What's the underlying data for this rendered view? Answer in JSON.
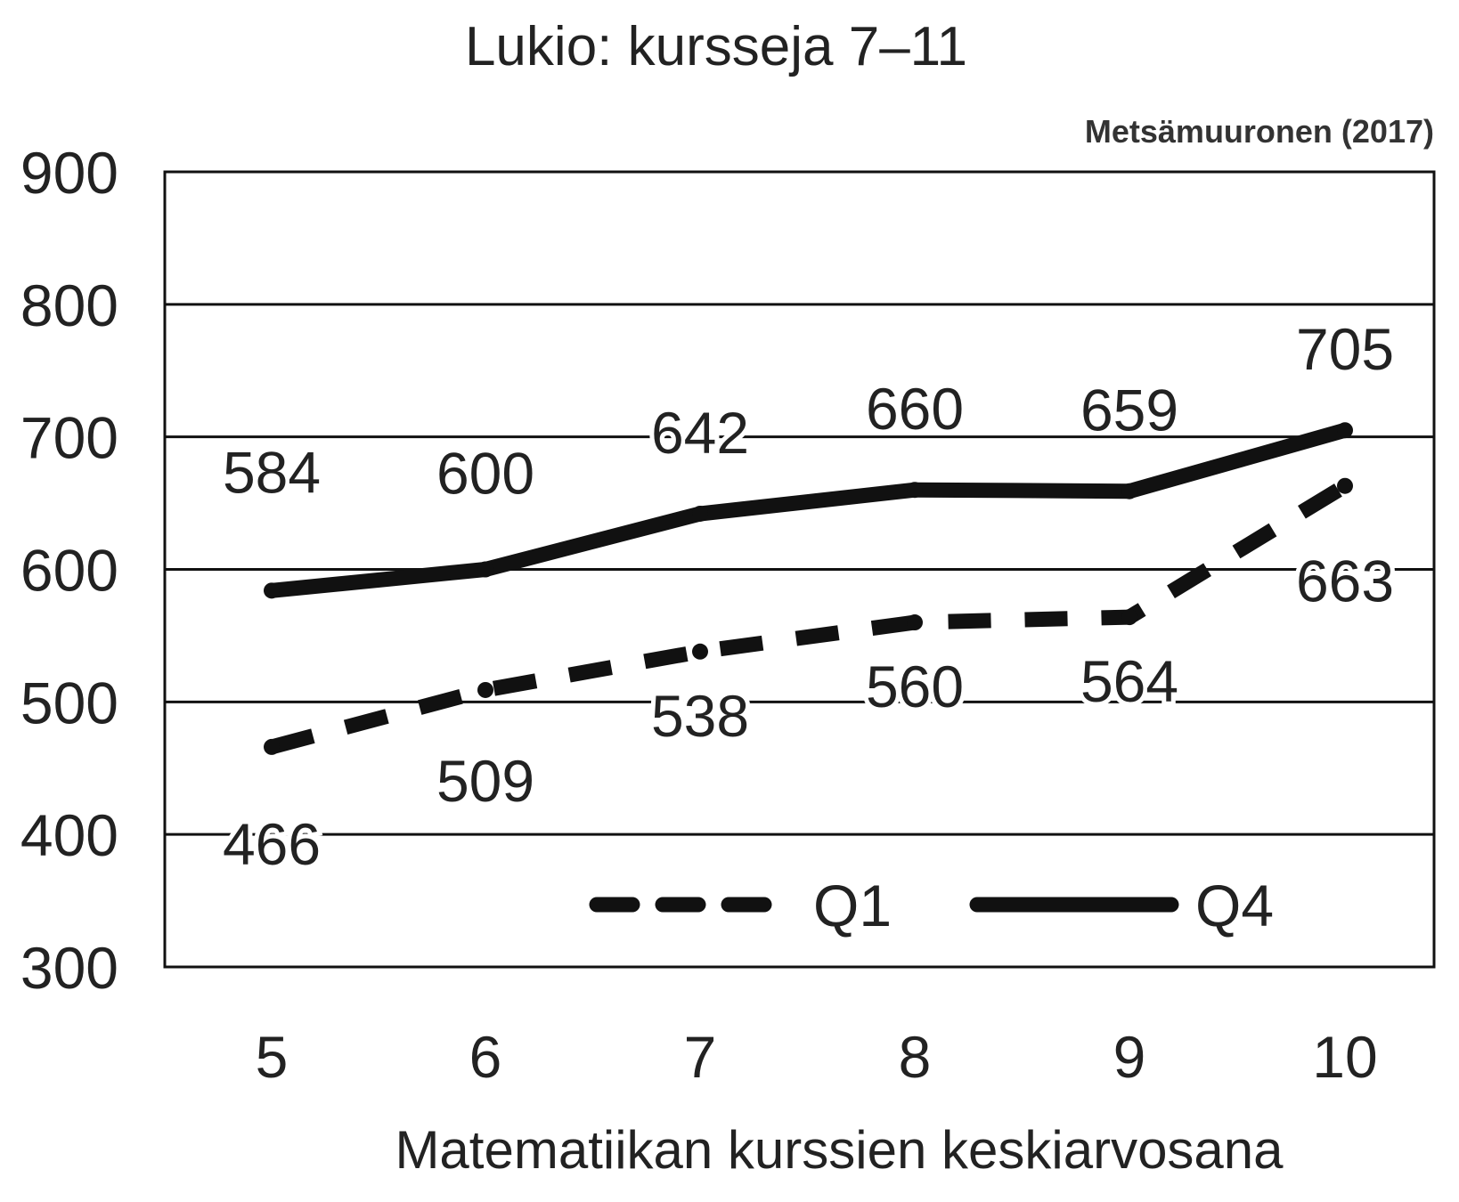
{
  "chart_data": {
    "type": "line",
    "title": "Lukio: kursseja 7–11",
    "source": "Metsämuuronen (2017)",
    "xlabel": "Matematiikan kurssien keskiarvosana",
    "ylabel": "",
    "categories": [
      "5",
      "6",
      "7",
      "8",
      "9",
      "10"
    ],
    "yticks": [
      "900",
      "800",
      "700",
      "600",
      "500",
      "400",
      "300"
    ],
    "ylim": [
      300,
      900
    ],
    "grid": true,
    "legend_position": "bottom-right",
    "series": [
      {
        "name": "Q1",
        "style": "dashed",
        "values": [
          466,
          509,
          538,
          560,
          564,
          663
        ],
        "labels": [
          "466",
          "509",
          "538",
          "560",
          "564",
          "663"
        ],
        "label_position": "below"
      },
      {
        "name": "Q4",
        "style": "solid",
        "values": [
          584,
          600,
          642,
          660,
          659,
          705
        ],
        "labels": [
          "584",
          "600",
          "642",
          "660",
          "659",
          "705"
        ],
        "label_position": "above"
      }
    ],
    "colors": {
      "line": "#111111",
      "grid": "#111111",
      "text": "#222222"
    }
  }
}
